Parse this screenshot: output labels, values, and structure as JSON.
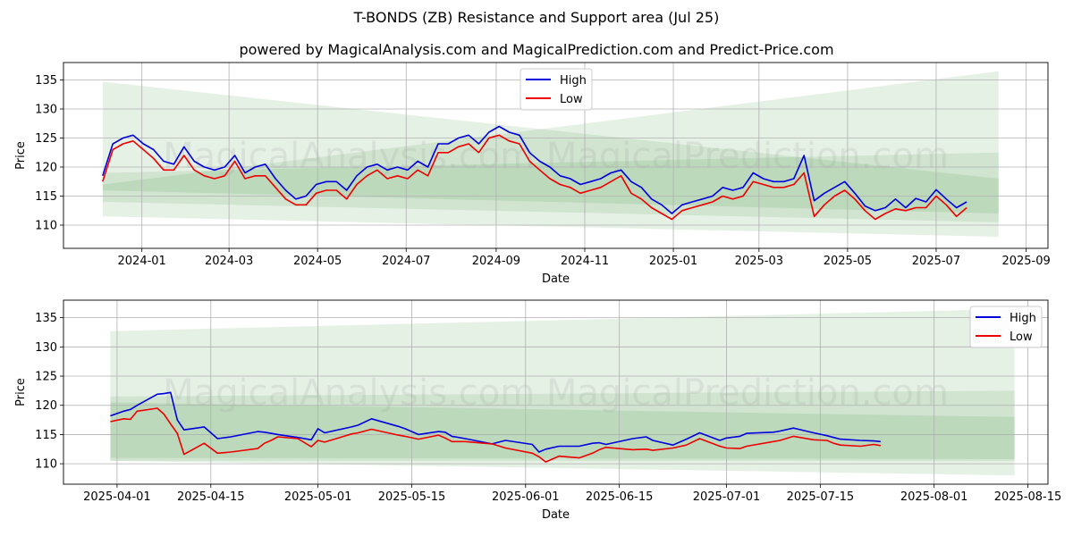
{
  "title": "T-BONDS (ZB) Resistance and Support area (Jul 25)",
  "subtitle": "powered by MagicalAnalysis.com and MagicalPrediction.com and Predict-Price.com",
  "watermark": "MagicalAnalysis.com   MagicalPrediction.com",
  "colors": {
    "high": "#0000dd",
    "low": "#ee0000",
    "band_fill": "#2e8b2e",
    "grid": "#b0b0b0"
  },
  "chart_data": [
    {
      "type": "line",
      "xlabel": "Date",
      "ylabel": "Price",
      "xlim": [
        "2023-11-08",
        "2025-09-16"
      ],
      "ylim": [
        106,
        138
      ],
      "grid": true,
      "legend_position": "top-center",
      "xticks": [
        "2024-01",
        "2024-03",
        "2024-05",
        "2024-07",
        "2024-09",
        "2024-11",
        "2025-01",
        "2025-03",
        "2025-05",
        "2025-07",
        "2025-09"
      ],
      "yticks": [
        110,
        115,
        120,
        125,
        130,
        135
      ],
      "bands": [
        {
          "x": [
            "2023-12-05",
            "2025-08-13"
          ],
          "upper": [
            134.7,
            118.0
          ],
          "lower": [
            111.5,
            108.0
          ]
        },
        {
          "x": [
            "2023-12-05",
            "2025-08-13"
          ],
          "upper": [
            117.0,
            136.5
          ],
          "lower": [
            114.0,
            110.5
          ]
        },
        {
          "x": [
            "2023-12-05",
            "2025-08-13"
          ],
          "upper": [
            119.0,
            122.5
          ],
          "lower": [
            116.0,
            112.0
          ]
        }
      ],
      "series": [
        {
          "name": "High",
          "x": [
            "2023-12-05",
            "2023-12-12",
            "2023-12-19",
            "2023-12-26",
            "2024-01-02",
            "2024-01-09",
            "2024-01-16",
            "2024-01-23",
            "2024-01-30",
            "2024-02-06",
            "2024-02-13",
            "2024-02-20",
            "2024-02-27",
            "2024-03-05",
            "2024-03-12",
            "2024-03-19",
            "2024-03-26",
            "2024-04-02",
            "2024-04-09",
            "2024-04-16",
            "2024-04-23",
            "2024-04-30",
            "2024-05-07",
            "2024-05-14",
            "2024-05-21",
            "2024-05-28",
            "2024-06-04",
            "2024-06-11",
            "2024-06-18",
            "2024-06-25",
            "2024-07-02",
            "2024-07-09",
            "2024-07-16",
            "2024-07-23",
            "2024-07-30",
            "2024-08-06",
            "2024-08-13",
            "2024-08-20",
            "2024-08-27",
            "2024-09-03",
            "2024-09-10",
            "2024-09-17",
            "2024-09-24",
            "2024-10-01",
            "2024-10-08",
            "2024-10-15",
            "2024-10-22",
            "2024-10-29",
            "2024-11-05",
            "2024-11-12",
            "2024-11-19",
            "2024-11-26",
            "2024-12-03",
            "2024-12-10",
            "2024-12-17",
            "2024-12-24",
            "2024-12-31",
            "2025-01-07",
            "2025-01-14",
            "2025-01-21",
            "2025-01-28",
            "2025-02-04",
            "2025-02-11",
            "2025-02-18",
            "2025-02-25",
            "2025-03-04",
            "2025-03-11",
            "2025-03-18",
            "2025-03-25",
            "2025-04-01",
            "2025-04-08",
            "2025-04-15",
            "2025-04-22",
            "2025-04-29",
            "2025-05-06",
            "2025-05-13",
            "2025-05-20",
            "2025-05-27",
            "2025-06-03",
            "2025-06-10",
            "2025-06-17",
            "2025-06-24",
            "2025-07-01",
            "2025-07-08",
            "2025-07-15",
            "2025-07-22"
          ],
          "values": [
            118.5,
            124.0,
            125.0,
            125.5,
            124.0,
            123.0,
            121.0,
            120.5,
            123.5,
            121.0,
            120.0,
            119.5,
            120.0,
            122.0,
            119.0,
            120.0,
            120.5,
            118.0,
            116.0,
            114.5,
            115.0,
            117.0,
            117.5,
            117.5,
            116.0,
            118.5,
            120.0,
            120.5,
            119.5,
            120.0,
            119.5,
            121.0,
            120.0,
            124.0,
            124.0,
            125.0,
            125.5,
            124.0,
            126.0,
            127.0,
            126.0,
            125.5,
            122.5,
            121.0,
            120.0,
            118.5,
            118.0,
            117.0,
            117.5,
            118.0,
            119.0,
            119.5,
            117.5,
            116.5,
            114.5,
            113.5,
            112.0,
            113.5,
            114.0,
            114.5,
            115.0,
            116.5,
            116.0,
            116.5,
            119.0,
            118.0,
            117.5,
            117.5,
            118.0,
            122.0,
            114.2,
            115.5,
            116.5,
            117.5,
            115.5,
            113.3,
            112.5,
            113.0,
            114.5,
            113.0,
            114.6,
            114.0,
            116.1,
            114.5,
            113.0,
            114.0
          ]
        },
        {
          "name": "Low",
          "x": [
            "2023-12-05",
            "2023-12-12",
            "2023-12-19",
            "2023-12-26",
            "2024-01-02",
            "2024-01-09",
            "2024-01-16",
            "2024-01-23",
            "2024-01-30",
            "2024-02-06",
            "2024-02-13",
            "2024-02-20",
            "2024-02-27",
            "2024-03-05",
            "2024-03-12",
            "2024-03-19",
            "2024-03-26",
            "2024-04-02",
            "2024-04-09",
            "2024-04-16",
            "2024-04-23",
            "2024-04-30",
            "2024-05-07",
            "2024-05-14",
            "2024-05-21",
            "2024-05-28",
            "2024-06-04",
            "2024-06-11",
            "2024-06-18",
            "2024-06-25",
            "2024-07-02",
            "2024-07-09",
            "2024-07-16",
            "2024-07-23",
            "2024-07-30",
            "2024-08-06",
            "2024-08-13",
            "2024-08-20",
            "2024-08-27",
            "2024-09-03",
            "2024-09-10",
            "2024-09-17",
            "2024-09-24",
            "2024-10-01",
            "2024-10-08",
            "2024-10-15",
            "2024-10-22",
            "2024-10-29",
            "2024-11-05",
            "2024-11-12",
            "2024-11-19",
            "2024-11-26",
            "2024-12-03",
            "2024-12-10",
            "2024-12-17",
            "2024-12-24",
            "2024-12-31",
            "2025-01-07",
            "2025-01-14",
            "2025-01-21",
            "2025-01-28",
            "2025-02-04",
            "2025-02-11",
            "2025-02-18",
            "2025-02-25",
            "2025-03-04",
            "2025-03-11",
            "2025-03-18",
            "2025-03-25",
            "2025-04-01",
            "2025-04-08",
            "2025-04-15",
            "2025-04-22",
            "2025-04-29",
            "2025-05-06",
            "2025-05-13",
            "2025-05-20",
            "2025-05-27",
            "2025-06-03",
            "2025-06-10",
            "2025-06-17",
            "2025-06-24",
            "2025-07-01",
            "2025-07-08",
            "2025-07-15",
            "2025-07-22"
          ],
          "values": [
            117.5,
            123.0,
            124.0,
            124.5,
            123.0,
            121.5,
            119.5,
            119.5,
            122.0,
            119.5,
            118.5,
            118.0,
            118.5,
            121.0,
            118.0,
            118.5,
            118.5,
            116.5,
            114.5,
            113.5,
            113.5,
            115.5,
            116.0,
            116.0,
            114.5,
            117.0,
            118.5,
            119.5,
            118.0,
            118.5,
            118.0,
            119.5,
            118.5,
            122.5,
            122.5,
            123.5,
            124.0,
            122.5,
            125.0,
            125.5,
            124.5,
            124.0,
            121.0,
            119.5,
            118.0,
            117.0,
            116.5,
            115.5,
            116.0,
            116.5,
            117.5,
            118.5,
            115.5,
            114.5,
            113.0,
            112.0,
            111.0,
            112.5,
            113.0,
            113.5,
            114.0,
            115.0,
            114.5,
            115.0,
            117.5,
            117.0,
            116.5,
            116.5,
            117.0,
            119.0,
            111.5,
            113.5,
            115.0,
            116.0,
            114.5,
            112.5,
            111.0,
            112.0,
            112.8,
            112.5,
            113.0,
            113.0,
            115.0,
            113.5,
            111.5,
            113.0
          ]
        }
      ]
    },
    {
      "type": "line",
      "xlabel": "Date",
      "ylabel": "Price",
      "xlim": [
        "2025-03-24",
        "2025-08-18"
      ],
      "ylim": [
        106.5,
        138
      ],
      "grid": true,
      "legend_position": "top-right",
      "xticks": [
        "2025-04-01",
        "2025-04-15",
        "2025-05-01",
        "2025-05-15",
        "2025-06-01",
        "2025-06-15",
        "2025-07-01",
        "2025-07-15",
        "2025-08-01",
        "2025-08-15"
      ],
      "yticks": [
        110,
        115,
        120,
        125,
        130,
        135
      ],
      "bands": [
        {
          "x": [
            "2025-03-31",
            "2025-08-13"
          ],
          "upper": [
            132.7,
            136.5
          ],
          "lower": [
            110.5,
            108.0
          ]
        },
        {
          "x": [
            "2025-03-31",
            "2025-08-13"
          ],
          "upper": [
            121.5,
            122.5
          ],
          "lower": [
            110.5,
            110.5
          ]
        },
        {
          "x": [
            "2025-03-31",
            "2025-08-13"
          ],
          "upper": [
            120.5,
            118.0
          ],
          "lower": [
            111.0,
            110.8
          ]
        }
      ],
      "series": [
        {
          "name": "High",
          "x": [
            "2025-03-31",
            "2025-04-02",
            "2025-04-03",
            "2025-04-04",
            "2025-04-07",
            "2025-04-08",
            "2025-04-09",
            "2025-04-10",
            "2025-04-11",
            "2025-04-14",
            "2025-04-16",
            "2025-04-18",
            "2025-04-22",
            "2025-04-23",
            "2025-04-24",
            "2025-04-25",
            "2025-04-28",
            "2025-04-30",
            "2025-05-01",
            "2025-05-02",
            "2025-05-06",
            "2025-05-07",
            "2025-05-09",
            "2025-05-13",
            "2025-05-14",
            "2025-05-16",
            "2025-05-19",
            "2025-05-20",
            "2025-05-21",
            "2025-05-23",
            "2025-05-27",
            "2025-05-29",
            "2025-06-02",
            "2025-06-03",
            "2025-06-04",
            "2025-06-06",
            "2025-06-09",
            "2025-06-11",
            "2025-06-12",
            "2025-06-13",
            "2025-06-17",
            "2025-06-19",
            "2025-06-20",
            "2025-06-23",
            "2025-06-25",
            "2025-06-27",
            "2025-06-30",
            "2025-07-01",
            "2025-07-03",
            "2025-07-04",
            "2025-07-08",
            "2025-07-09",
            "2025-07-11",
            "2025-07-14",
            "2025-07-16",
            "2025-07-17",
            "2025-07-18",
            "2025-07-21",
            "2025-07-23",
            "2025-07-24"
          ],
          "values": [
            118.2,
            119.0,
            119.3,
            120.0,
            121.9,
            122.0,
            122.2,
            117.5,
            115.8,
            116.3,
            114.3,
            114.6,
            115.5,
            115.4,
            115.2,
            115.0,
            114.5,
            114.1,
            116.0,
            115.3,
            116.3,
            116.6,
            117.7,
            116.4,
            116.0,
            115.0,
            115.5,
            115.4,
            114.7,
            114.3,
            113.4,
            114.0,
            113.3,
            112.0,
            112.5,
            113.0,
            113.0,
            113.5,
            113.6,
            113.3,
            114.3,
            114.6,
            114.0,
            113.2,
            114.2,
            115.3,
            114.0,
            114.4,
            114.7,
            115.2,
            115.4,
            115.6,
            116.1,
            115.3,
            114.8,
            114.5,
            114.2,
            114.0,
            113.9,
            113.8
          ]
        },
        {
          "name": "Low",
          "x": [
            "2025-03-31",
            "2025-04-02",
            "2025-04-03",
            "2025-04-04",
            "2025-04-07",
            "2025-04-08",
            "2025-04-09",
            "2025-04-10",
            "2025-04-11",
            "2025-04-14",
            "2025-04-16",
            "2025-04-18",
            "2025-04-22",
            "2025-04-23",
            "2025-04-24",
            "2025-04-25",
            "2025-04-28",
            "2025-04-30",
            "2025-05-01",
            "2025-05-02",
            "2025-05-06",
            "2025-05-07",
            "2025-05-09",
            "2025-05-13",
            "2025-05-14",
            "2025-05-16",
            "2025-05-19",
            "2025-05-20",
            "2025-05-21",
            "2025-05-23",
            "2025-05-27",
            "2025-05-29",
            "2025-06-02",
            "2025-06-03",
            "2025-06-04",
            "2025-06-06",
            "2025-06-09",
            "2025-06-11",
            "2025-06-12",
            "2025-06-13",
            "2025-06-17",
            "2025-06-19",
            "2025-06-20",
            "2025-06-23",
            "2025-06-25",
            "2025-06-27",
            "2025-06-30",
            "2025-07-01",
            "2025-07-03",
            "2025-07-04",
            "2025-07-08",
            "2025-07-09",
            "2025-07-11",
            "2025-07-14",
            "2025-07-16",
            "2025-07-17",
            "2025-07-18",
            "2025-07-21",
            "2025-07-23",
            "2025-07-24"
          ],
          "values": [
            117.2,
            117.7,
            117.6,
            119.0,
            119.5,
            118.5,
            116.8,
            115.2,
            111.6,
            113.5,
            111.8,
            112.0,
            112.6,
            113.5,
            114.0,
            114.6,
            114.3,
            112.9,
            114.0,
            113.7,
            115.1,
            115.3,
            115.9,
            114.9,
            114.7,
            114.2,
            114.9,
            114.4,
            113.8,
            113.8,
            113.4,
            112.7,
            111.8,
            111.2,
            110.3,
            111.3,
            111.0,
            111.8,
            112.4,
            112.8,
            112.4,
            112.5,
            112.3,
            112.7,
            113.2,
            114.3,
            113.0,
            112.7,
            112.6,
            113.0,
            113.8,
            114.0,
            114.7,
            114.1,
            114.0,
            113.5,
            113.2,
            113.0,
            113.3,
            113.1
          ]
        }
      ]
    }
  ]
}
